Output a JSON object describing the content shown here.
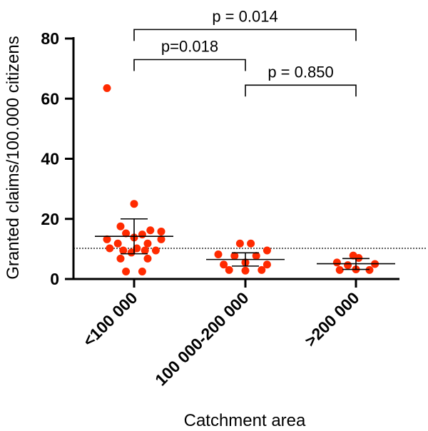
{
  "chart_data": {
    "type": "scatter",
    "xlabel": "Catchment area",
    "ylabel": "Granted claims/100.000 citizens",
    "categories": [
      "<100 000",
      "100 000-200 000",
      ">200 000"
    ],
    "ylim": [
      0,
      80
    ],
    "yticks": [
      0,
      20,
      40,
      60,
      80
    ],
    "reference_line": 10.2,
    "point_color": "#ff2a00",
    "groups": [
      {
        "category": "<100 000",
        "points": [
          {
            "dx": -1,
            "y": 63.5
          },
          {
            "dx": 0,
            "y": 25
          },
          {
            "dx": -0.5,
            "y": 17.5
          },
          {
            "dx": 0.6,
            "y": 16.2
          },
          {
            "dx": 1.0,
            "y": 15.8
          },
          {
            "dx": -0.3,
            "y": 15.2
          },
          {
            "dx": 0.3,
            "y": 14.8
          },
          {
            "dx": -1.0,
            "y": 13.2
          },
          {
            "dx": 1.0,
            "y": 13.2
          },
          {
            "dx": 0.0,
            "y": 13.8
          },
          {
            "dx": -0.6,
            "y": 11.8
          },
          {
            "dx": 0.5,
            "y": 11.8
          },
          {
            "dx": -0.9,
            "y": 10.2
          },
          {
            "dx": 0.1,
            "y": 10.2
          },
          {
            "dx": -0.4,
            "y": 9.5
          },
          {
            "dx": 0.4,
            "y": 9.5
          },
          {
            "dx": 0.8,
            "y": 9.5
          },
          {
            "dx": -0.1,
            "y": 8.8
          },
          {
            "dx": -0.5,
            "y": 6.8
          },
          {
            "dx": 0.5,
            "y": 6.8
          },
          {
            "dx": -0.3,
            "y": 2.5
          },
          {
            "dx": 0.3,
            "y": 2.5
          }
        ],
        "mean": 14.2,
        "sd_low": 8.4,
        "sd_high": 20.0
      },
      {
        "category": "100 000-200 000",
        "points": [
          {
            "dx": -0.2,
            "y": 11.8
          },
          {
            "dx": 0.2,
            "y": 11.8
          },
          {
            "dx": 0.8,
            "y": 9.5
          },
          {
            "dx": -1.0,
            "y": 8.2
          },
          {
            "dx": -0.4,
            "y": 7.7
          },
          {
            "dx": 0.4,
            "y": 7.7
          },
          {
            "dx": 0.0,
            "y": 5.5
          },
          {
            "dx": -0.8,
            "y": 4.8
          },
          {
            "dx": 0.8,
            "y": 4.8
          },
          {
            "dx": -0.6,
            "y": 3.0
          },
          {
            "dx": 0.0,
            "y": 2.8
          },
          {
            "dx": 0.6,
            "y": 3.0
          }
        ],
        "mean": 6.5,
        "sd_low": 4.3,
        "sd_high": 8.7
      },
      {
        "category": ">200 000",
        "points": [
          {
            "dx": -0.1,
            "y": 7.8
          },
          {
            "dx": 0.1,
            "y": 7.0
          },
          {
            "dx": -0.7,
            "y": 5.5
          },
          {
            "dx": 0.7,
            "y": 5.0
          },
          {
            "dx": -0.3,
            "y": 4.6
          },
          {
            "dx": -0.6,
            "y": 3.0
          },
          {
            "dx": 0.0,
            "y": 3.2
          },
          {
            "dx": 0.5,
            "y": 3.0
          }
        ],
        "mean": 5.1,
        "sd_low": 3.2,
        "sd_high": 6.8
      }
    ],
    "annotations": [
      {
        "from": 0,
        "to": 2,
        "text": "p = 0.014",
        "y": 83
      },
      {
        "from": 0,
        "to": 1,
        "text": "p=0.018",
        "y": 73
      },
      {
        "from": 1,
        "to": 2,
        "text": "p = 0.850",
        "y": 64.5
      }
    ]
  }
}
